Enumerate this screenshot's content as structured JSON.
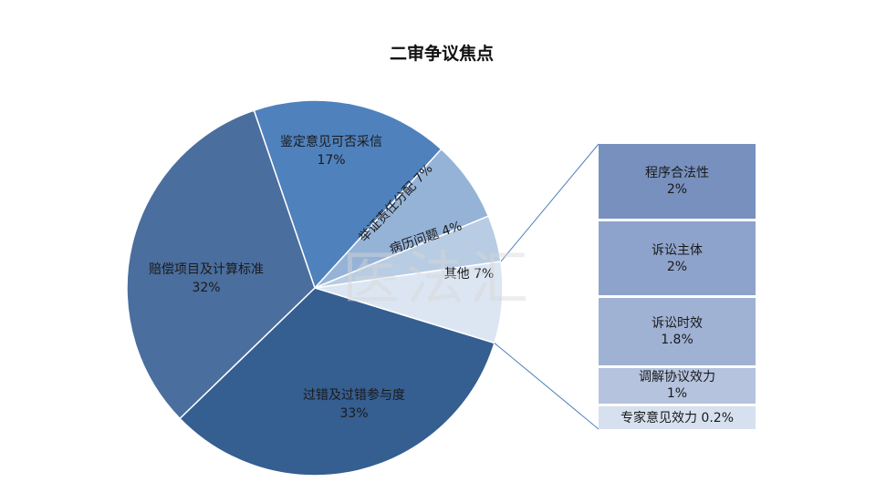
{
  "chart_data": [
    {
      "type": "pie",
      "title": "二审争议焦点",
      "slices": [
        {
          "label": "鉴定意见可否采信",
          "value": 17,
          "value_label": "17%",
          "color": "#4f81bd"
        },
        {
          "label": "举证责任分配",
          "value": 7,
          "value_label": "7%",
          "color": "#95b3d7"
        },
        {
          "label": "病历问题",
          "value": 4,
          "value_label": "4%",
          "color": "#b8cce4"
        },
        {
          "label": "其他",
          "value": 7,
          "value_label": "7%",
          "color": "#dce6f2"
        },
        {
          "label": "过错及过错参与度",
          "value": 33,
          "value_label": "33%",
          "color": "#355e91"
        },
        {
          "label": "赔偿项目及计算标准",
          "value": 32,
          "value_label": "32%",
          "color": "#4a6e9d"
        }
      ]
    },
    {
      "type": "bar",
      "stacked": true,
      "categories": [
        "程序合法性",
        "诉讼主体",
        "诉讼时效",
        "调解协议效力",
        "专家意见效力"
      ],
      "values": [
        2,
        2,
        1.8,
        1,
        0.2
      ],
      "value_labels": [
        "2%",
        "2%",
        "1.8%",
        "1%",
        "0.2%"
      ],
      "colors": [
        "#7790be",
        "#8ea3cb",
        "#a0b2d4",
        "#b5c3de",
        "#d6e0ef"
      ]
    }
  ],
  "watermark_text": "医法汇"
}
